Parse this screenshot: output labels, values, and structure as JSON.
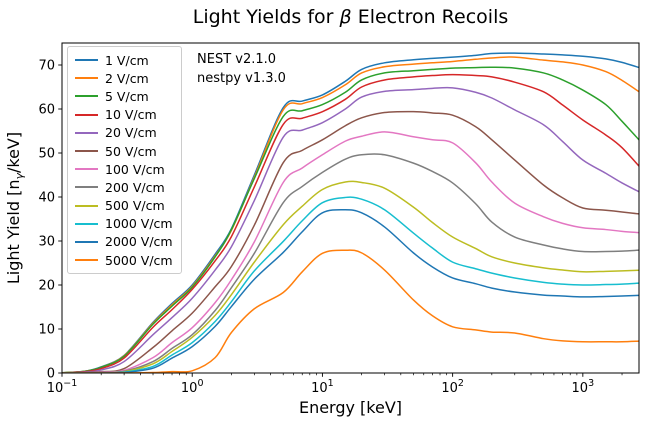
{
  "figure": {
    "title": {
      "pre": "Light Yields for ",
      "beta": "β",
      "post": " Electron Recoils"
    },
    "annotation": {
      "line1": "NEST v2.1.0",
      "line2": "nestpy v1.3.0"
    },
    "xlabel": "Energy [keV]",
    "ylabel": {
      "pre": "Light Yield [n",
      "sub": "γ",
      "post": "/keV]"
    }
  },
  "chart_data": {
    "type": "line",
    "title": "Light Yields for β Electron Recoils",
    "xlabel": "Energy [keV]",
    "ylabel": "Light Yield [n_γ/keV]",
    "xscale": "log",
    "yscale": "linear",
    "xlim": [
      0.1,
      2700
    ],
    "ylim": [
      0,
      75
    ],
    "xticks": [
      0.1,
      1,
      10,
      100,
      1000
    ],
    "xtick_labels": [
      "10^−1",
      "10^0",
      "10^1",
      "10^2",
      "10^3"
    ],
    "yticks": [
      0,
      10,
      20,
      30,
      40,
      50,
      60,
      70
    ],
    "grid": false,
    "legend_position": "upper left",
    "annotations": [
      "NEST v2.1.0",
      "nestpy v1.3.0"
    ],
    "line_width": 1.5,
    "x": [
      0.1,
      0.15,
      0.2,
      0.3,
      0.5,
      0.7,
      1,
      1.5,
      2,
      3,
      5,
      7,
      10,
      15,
      20,
      30,
      50,
      70,
      100,
      150,
      200,
      300,
      500,
      700,
      1000,
      1500,
      2000,
      3000
    ],
    "series": [
      {
        "name": "1 V/cm",
        "color": "#1f77b4",
        "values": [
          0.05,
          0.4,
          1.4,
          4.0,
          11.5,
          15.8,
          20.0,
          27.0,
          32.8,
          45.0,
          60.3,
          61.8,
          63.2,
          66.3,
          69.0,
          70.5,
          71.2,
          71.5,
          71.8,
          72.2,
          72.6,
          72.7,
          72.5,
          72.3,
          72.0,
          71.4,
          70.6,
          69.0
        ]
      },
      {
        "name": "2 V/cm",
        "color": "#ff7f0e",
        "values": [
          0.05,
          0.4,
          1.3,
          3.9,
          11.3,
          15.5,
          19.7,
          26.6,
          32.4,
          44.5,
          59.8,
          61.2,
          62.6,
          65.5,
          68.2,
          69.6,
          70.2,
          70.5,
          70.8,
          71.3,
          71.6,
          71.8,
          71.1,
          70.7,
          70.0,
          68.5,
          66.5,
          63.0
        ]
      },
      {
        "name": "5 V/cm",
        "color": "#2ca02c",
        "values": [
          0.05,
          0.4,
          1.3,
          3.8,
          11.1,
          15.2,
          19.5,
          26.4,
          32.6,
          44.2,
          58.3,
          59.6,
          61.0,
          63.8,
          66.6,
          68.2,
          68.7,
          69.0,
          69.3,
          69.4,
          69.5,
          69.3,
          68.2,
          66.6,
          64.3,
          61.0,
          57.2,
          51.5
        ]
      },
      {
        "name": "10 V/cm",
        "color": "#d62728",
        "values": [
          0.0,
          0.3,
          1.0,
          3.4,
          10.4,
          14.4,
          19.0,
          25.5,
          31.0,
          42.3,
          56.5,
          57.9,
          59.4,
          62.2,
          65.0,
          66.6,
          67.3,
          67.6,
          67.8,
          67.6,
          67.3,
          66.1,
          63.9,
          60.9,
          57.5,
          54.1,
          51.2,
          45.5
        ]
      },
      {
        "name": "20 V/cm",
        "color": "#9467bd",
        "values": [
          0.0,
          0.2,
          0.7,
          2.6,
          8.7,
          12.6,
          17.0,
          23.4,
          28.7,
          39.2,
          53.6,
          55.2,
          56.9,
          60.0,
          62.7,
          64.0,
          64.4,
          64.7,
          64.8,
          63.8,
          62.5,
          59.8,
          56.4,
          52.6,
          48.4,
          45.4,
          43.2,
          40.5
        ]
      },
      {
        "name": "50 V/cm",
        "color": "#8c564b",
        "values": [
          0.0,
          0.1,
          0.3,
          1.0,
          5.8,
          9.6,
          13.6,
          19.6,
          24.2,
          33.6,
          47.8,
          50.6,
          53.0,
          56.2,
          58.0,
          59.2,
          59.4,
          59.1,
          58.6,
          56.0,
          53.0,
          48.4,
          42.7,
          39.8,
          37.5,
          37.0,
          36.6,
          36.0
        ]
      },
      {
        "name": "100 V/cm",
        "color": "#e377c2",
        "values": [
          0.0,
          0.0,
          0.2,
          0.6,
          3.5,
          6.9,
          10.3,
          16.0,
          21.2,
          29.8,
          43.3,
          46.6,
          49.6,
          52.7,
          53.8,
          54.8,
          53.7,
          53.0,
          52.3,
          47.8,
          43.4,
          38.6,
          35.5,
          34.0,
          33.0,
          32.6,
          32.2,
          31.8
        ]
      },
      {
        "name": "200 V/cm",
        "color": "#7f7f7f",
        "values": [
          0.0,
          0.0,
          0.1,
          0.4,
          2.6,
          5.6,
          8.7,
          14.2,
          19.4,
          27.2,
          38.7,
          42.4,
          45.6,
          48.6,
          49.6,
          49.6,
          47.7,
          45.8,
          43.2,
          38.5,
          34.3,
          30.9,
          29.1,
          28.2,
          27.6,
          27.6,
          27.7,
          28.0
        ]
      },
      {
        "name": "500 V/cm",
        "color": "#bcbd22",
        "values": [
          0.0,
          0.0,
          0.0,
          0.3,
          2.1,
          4.9,
          8.1,
          13.1,
          17.8,
          25.2,
          33.7,
          37.9,
          41.7,
          43.4,
          43.3,
          42.0,
          37.7,
          34.2,
          30.9,
          28.3,
          26.4,
          25.0,
          23.9,
          23.4,
          23.0,
          23.1,
          23.2,
          23.4
        ]
      },
      {
        "name": "1000 V/cm",
        "color": "#17becf",
        "values": [
          0.0,
          0.0,
          0.0,
          0.2,
          1.5,
          4.1,
          6.9,
          11.7,
          16.2,
          23.2,
          29.9,
          34.6,
          38.7,
          39.9,
          39.5,
          37.1,
          31.8,
          28.4,
          25.2,
          23.7,
          22.7,
          21.6,
          20.6,
          20.2,
          20.0,
          20.1,
          20.2,
          20.5
        ]
      },
      {
        "name": "2000 V/cm",
        "color": "#1f77b4",
        "values": [
          0.0,
          0.0,
          0.0,
          0.1,
          1.1,
          3.4,
          6.0,
          10.6,
          15.1,
          21.3,
          27.4,
          32.1,
          36.4,
          37.1,
          36.4,
          33.2,
          27.3,
          24.1,
          21.6,
          20.3,
          19.3,
          18.4,
          17.7,
          17.5,
          17.3,
          17.4,
          17.5,
          17.7
        ]
      },
      {
        "name": "5000 V/cm",
        "color": "#ff7f0e",
        "values": [
          0.0,
          0.0,
          0.0,
          0.0,
          0.1,
          0.3,
          0.5,
          3.5,
          9.2,
          14.6,
          18.3,
          23.0,
          27.2,
          27.9,
          27.3,
          23.4,
          16.6,
          13.0,
          10.5,
          9.8,
          9.3,
          9.1,
          7.8,
          7.3,
          7.1,
          7.1,
          7.1,
          7.3
        ]
      }
    ]
  }
}
